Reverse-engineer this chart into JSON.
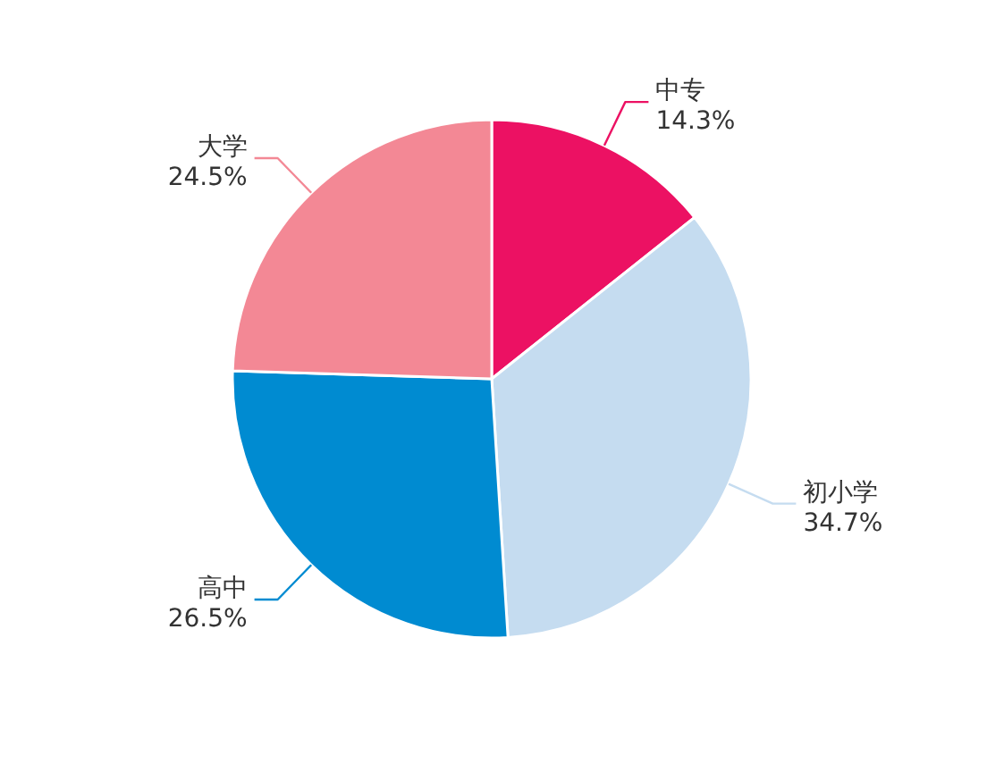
{
  "chart_data": {
    "type": "pie",
    "categories": [
      "中专",
      "初小学",
      "高中",
      "大学"
    ],
    "values": [
      14.3,
      34.7,
      26.5,
      24.5
    ],
    "colors": [
      "#ec1163",
      "#c5dcf0",
      "#008bd1",
      "#f38895"
    ],
    "value_labels": [
      "14.3%",
      "34.7%",
      "26.5%",
      "24.5%"
    ]
  }
}
